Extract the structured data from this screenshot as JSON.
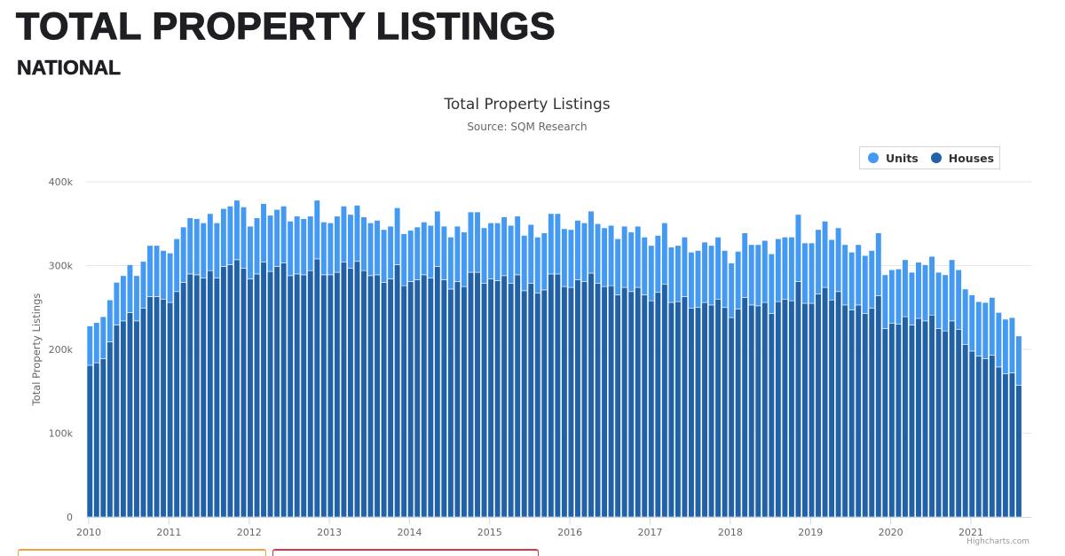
{
  "page": {
    "title": "TOTAL PROPERTY LISTINGS",
    "subtitle": "NATIONAL"
  },
  "credits": "Highcharts.com",
  "chart_data": {
    "type": "bar",
    "stacked": true,
    "title": "Total Property Listings",
    "subtitle": "Source: SQM Research",
    "xlabel": "",
    "ylabel": "Total Property Listings",
    "ylim": [
      0,
      400000
    ],
    "y_ticks": [
      {
        "value": 0,
        "label": "0"
      },
      {
        "value": 100000,
        "label": "100k"
      },
      {
        "value": 200000,
        "label": "200k"
      },
      {
        "value": 300000,
        "label": "300k"
      },
      {
        "value": 400000,
        "label": "400k"
      }
    ],
    "x_ticks": [
      "2010",
      "2011",
      "2012",
      "2013",
      "2014",
      "2015",
      "2016",
      "2017",
      "2018",
      "2019",
      "2020",
      "2021"
    ],
    "x_start": "2010-01",
    "x_interval": "month",
    "grid": true,
    "legend_position": "top-right",
    "legend": [
      "Units",
      "Houses"
    ],
    "series": [
      {
        "name": "Houses",
        "color": "#2161a8",
        "values": [
          181000,
          184000,
          189000,
          209000,
          229000,
          234000,
          244000,
          234000,
          249000,
          263000,
          263000,
          260000,
          256000,
          269000,
          280000,
          290000,
          289000,
          285000,
          294000,
          285000,
          299000,
          301000,
          307000,
          297000,
          284000,
          290000,
          304000,
          293000,
          299000,
          303000,
          288000,
          290000,
          289000,
          294000,
          308000,
          289000,
          289000,
          292000,
          304000,
          297000,
          305000,
          294000,
          288000,
          289000,
          280000,
          284000,
          301000,
          276000,
          281000,
          283000,
          289000,
          285000,
          299000,
          283000,
          272000,
          281000,
          275000,
          292000,
          292000,
          279000,
          284000,
          282000,
          288000,
          279000,
          289000,
          270000,
          279000,
          267000,
          271000,
          290000,
          290000,
          275000,
          274000,
          283000,
          281000,
          291000,
          279000,
          275000,
          276000,
          265000,
          274000,
          269000,
          274000,
          265000,
          258000,
          268000,
          278000,
          256000,
          257000,
          263000,
          249000,
          250000,
          256000,
          253000,
          260000,
          250000,
          238000,
          248000,
          262000,
          253000,
          252000,
          256000,
          243000,
          257000,
          260000,
          258000,
          281000,
          255000,
          255000,
          266000,
          274000,
          259000,
          269000,
          253000,
          247000,
          253000,
          243000,
          249000,
          264000,
          225000,
          231000,
          230000,
          239000,
          229000,
          237000,
          234000,
          241000,
          225000,
          222000,
          234000,
          224000,
          206000,
          198000,
          192000,
          189000,
          193000,
          179000,
          171000,
          172000,
          157000
        ]
      },
      {
        "name": "Units",
        "color": "#4499f2",
        "values": [
          47000,
          48000,
          50000,
          50000,
          51000,
          54000,
          57000,
          54000,
          56000,
          61000,
          61000,
          58000,
          59000,
          63000,
          66000,
          67000,
          67000,
          66000,
          68000,
          66000,
          69000,
          70000,
          71000,
          73000,
          63000,
          67000,
          70000,
          67000,
          68000,
          68000,
          65000,
          69000,
          67000,
          65000,
          70000,
          63000,
          62000,
          67000,
          67000,
          64000,
          67000,
          64000,
          63000,
          65000,
          63000,
          63000,
          68000,
          62000,
          61000,
          63000,
          63000,
          63000,
          66000,
          64000,
          62000,
          66000,
          65000,
          72000,
          72000,
          66000,
          67000,
          69000,
          70000,
          69000,
          70000,
          66000,
          70000,
          67000,
          68000,
          72000,
          72000,
          69000,
          69000,
          71000,
          70000,
          74000,
          71000,
          70000,
          72000,
          67000,
          73000,
          71000,
          73000,
          69000,
          66000,
          68000,
          73000,
          66000,
          67000,
          71000,
          67000,
          68000,
          72000,
          71000,
          74000,
          68000,
          65000,
          69000,
          77000,
          72000,
          73000,
          74000,
          71000,
          75000,
          74000,
          76000,
          80000,
          72000,
          72000,
          77000,
          79000,
          72000,
          76000,
          72000,
          69000,
          72000,
          69000,
          69000,
          75000,
          64000,
          64000,
          66000,
          68000,
          63000,
          67000,
          67000,
          70000,
          67000,
          67000,
          73000,
          71000,
          66000,
          67000,
          65000,
          67000,
          69000,
          65000,
          65000,
          66000,
          59000
        ]
      }
    ]
  }
}
